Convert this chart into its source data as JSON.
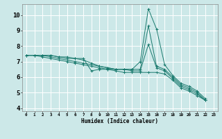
{
  "xlabel": "Humidex (Indice chaleur)",
  "bg_color": "#cce8e8",
  "grid_color": "#ffffff",
  "line_color": "#1a7a6e",
  "xlim": [
    -0.5,
    23.5
  ],
  "ylim": [
    3.8,
    10.7
  ],
  "yticks": [
    4,
    5,
    6,
    7,
    8,
    9,
    10
  ],
  "xtick_labels": [
    "0",
    "1",
    "2",
    "3",
    "4",
    "5",
    "6",
    "7",
    "8",
    "9",
    "10",
    "11",
    "12",
    "13",
    "14",
    "15",
    "16",
    "17",
    "18",
    "19",
    "20",
    "21",
    "22",
    "23"
  ],
  "series": [
    [
      7.4,
      7.4,
      7.4,
      7.4,
      7.3,
      7.3,
      7.2,
      7.2,
      6.4,
      6.5,
      6.5,
      6.5,
      6.5,
      6.5,
      7.0,
      10.4,
      9.1,
      6.8,
      6.1,
      5.6,
      5.4,
      5.1,
      4.6
    ],
    [
      7.4,
      7.4,
      7.4,
      7.4,
      7.3,
      7.2,
      7.2,
      7.1,
      6.9,
      6.7,
      6.6,
      6.5,
      6.5,
      6.5,
      6.5,
      9.3,
      6.7,
      6.5,
      6.0,
      5.5,
      5.3,
      5.0,
      4.5
    ],
    [
      7.4,
      7.4,
      7.4,
      7.3,
      7.2,
      7.1,
      7.0,
      6.9,
      6.8,
      6.7,
      6.6,
      6.5,
      6.5,
      6.4,
      6.4,
      8.1,
      6.6,
      6.4,
      5.9,
      5.4,
      5.2,
      4.9,
      4.5
    ],
    [
      7.4,
      7.4,
      7.3,
      7.2,
      7.1,
      7.0,
      6.9,
      6.8,
      6.7,
      6.6,
      6.5,
      6.4,
      6.3,
      6.3,
      6.3,
      6.3,
      6.3,
      6.2,
      5.8,
      5.3,
      5.1,
      4.8,
      4.5
    ]
  ]
}
